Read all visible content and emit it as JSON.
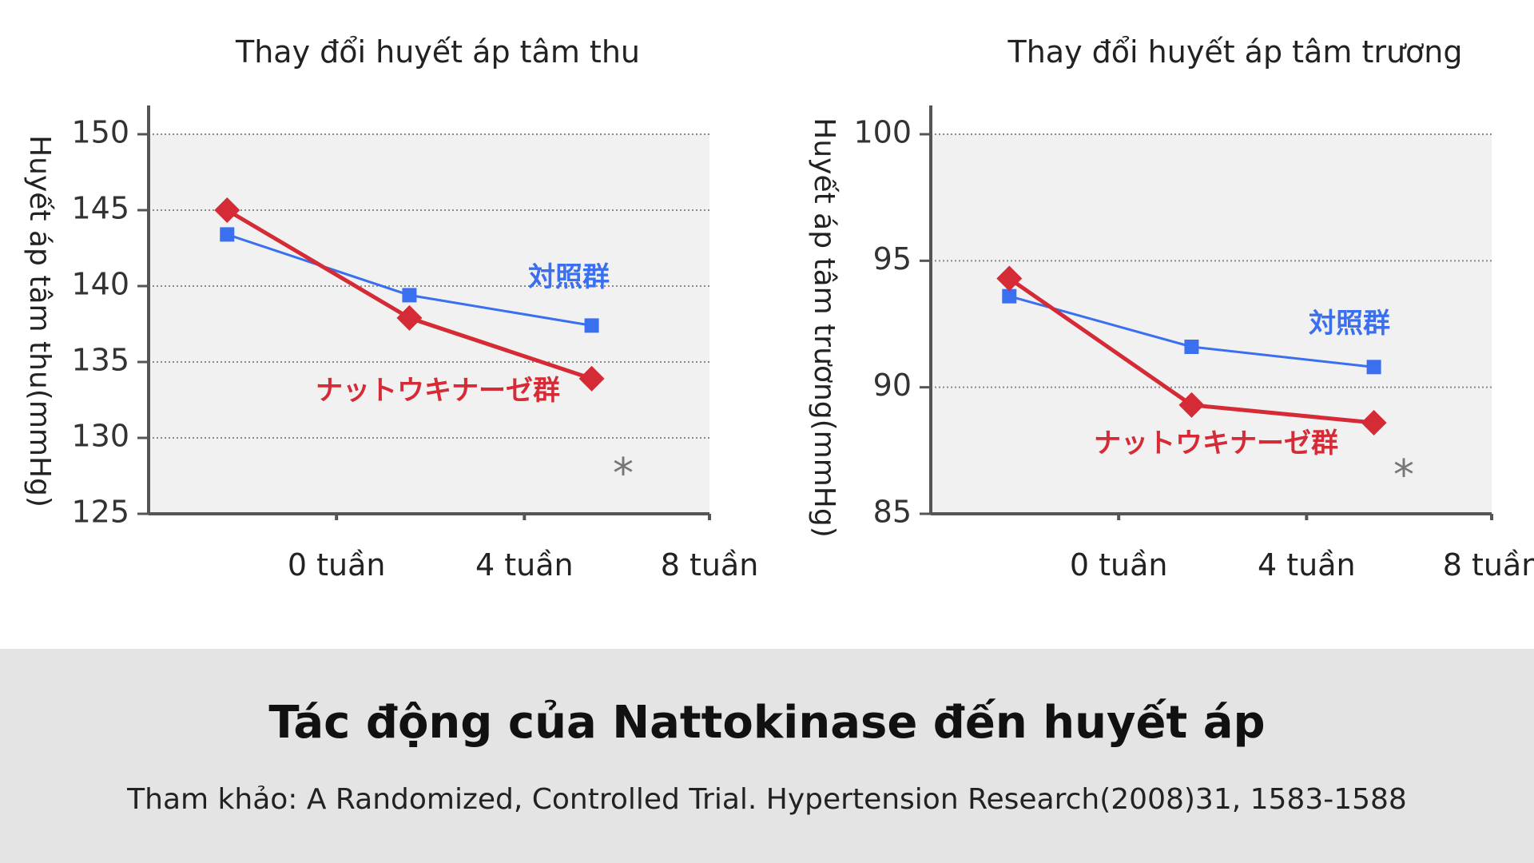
{
  "colors": {
    "control": "#3a6ff0",
    "nattokinase": "#d42b36",
    "plot_bg": "#f1f1f1",
    "grid": "#8a8a8a",
    "footer_bg": "#e4e4e4"
  },
  "chart_data": [
    {
      "type": "line",
      "title": "Thay đổi huyết áp tâm thu",
      "ylabel": "Huyết áp tâm thu(mmHg)",
      "xlabel": "",
      "x_tick_labels": [
        "0 tuần",
        "4 tuần",
        "8 tuần"
      ],
      "x": [
        0,
        4,
        8
      ],
      "ylim": [
        125,
        150
      ],
      "yticks": [
        150,
        145,
        140,
        135,
        130,
        125
      ],
      "grid": true,
      "series": [
        {
          "name": "対照群",
          "color": "control",
          "marker": "square",
          "values": [
            143.4,
            139.4,
            137.4
          ]
        },
        {
          "name": "ナットウキナーゼ群",
          "color": "nattokinase",
          "marker": "diamond",
          "values": [
            145.0,
            137.9,
            133.9
          ]
        }
      ],
      "annotations": [
        {
          "text": "*",
          "x": 8
        }
      ]
    },
    {
      "type": "line",
      "title": "Thay đổi huyết áp tâm trương",
      "ylabel": "Huyết áp tâm trương(mmHg)",
      "xlabel": "",
      "x_tick_labels": [
        "0 tuần",
        "4 tuần",
        "8 tuần"
      ],
      "x": [
        0,
        4,
        8
      ],
      "ylim": [
        85,
        100
      ],
      "yticks": [
        100,
        95,
        90,
        85
      ],
      "grid": true,
      "series": [
        {
          "name": "対照群",
          "color": "control",
          "marker": "square",
          "values": [
            93.6,
            91.6,
            90.8
          ]
        },
        {
          "name": "ナットウキナーゼ群",
          "color": "nattokinase",
          "marker": "diamond",
          "values": [
            94.3,
            89.3,
            88.6
          ]
        }
      ],
      "annotations": [
        {
          "text": "*",
          "x": 8
        }
      ]
    }
  ],
  "footer": {
    "title": "Tác động của Nattokinase đến huyết áp",
    "reference": "Tham khảo: A Randomized, Controlled Trial. Hypertension Research(2008)31, 1583-1588"
  }
}
